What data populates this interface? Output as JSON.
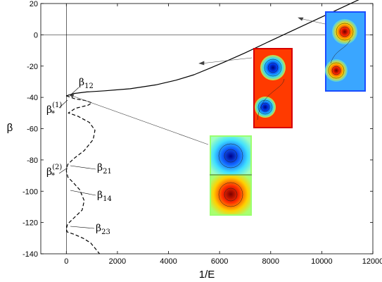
{
  "chart_data": {
    "type": "line",
    "xlabel": "1/E",
    "ylabel": "β",
    "xlim": [
      -1000,
      12000
    ],
    "ylim": [
      -140,
      20
    ],
    "xticks": [
      0,
      2000,
      4000,
      6000,
      8000,
      10000,
      12000
    ],
    "yticks": [
      20,
      0,
      -20,
      -40,
      -60,
      -80,
      -100,
      -120,
      -140
    ],
    "grid": false,
    "series": [
      {
        "style": "solid",
        "x": [
          0,
          300,
          800,
          1500,
          2500,
          3500,
          4300,
          5000,
          5600,
          6200,
          7000,
          8000,
          9000,
          10000,
          11000,
          11500
        ],
        "y": [
          -39,
          -37.5,
          -36.5,
          -35.8,
          -34.5,
          -32,
          -29,
          -25.5,
          -21.5,
          -17.3,
          -11.5,
          -3.8,
          3.8,
          11.4,
          19,
          22.8
        ]
      },
      {
        "style": "dashed",
        "x": [
          0,
          350,
          750,
          1000,
          850,
          350,
          80,
          450,
          900,
          1120,
          1050,
          700,
          300,
          50,
          0,
          60,
          300,
          520,
          700,
          620,
          300,
          50,
          0,
          30,
          300,
          650,
          950,
          1150,
          1300
        ],
        "y": [
          -39,
          -41,
          -42,
          -43.5,
          -45,
          -47,
          -50,
          -52,
          -56,
          -61,
          -67,
          -74,
          -79,
          -83,
          -87,
          -91,
          -95,
          -99,
          -106,
          -112,
          -117,
          -121,
          -124,
          -126,
          -127.5,
          -130,
          -133,
          -137,
          -140
        ]
      }
    ],
    "annotations": [
      {
        "base": "β",
        "sub": "12",
        "x": 0,
        "y": -39
      },
      {
        "base": "β",
        "sup": "(1)",
        "subscript_mark": "*",
        "x": 0,
        "y": -47
      },
      {
        "base": "β",
        "sub": "21",
        "x": 0,
        "y": -85
      },
      {
        "base": "β",
        "sup": "(2)",
        "subscript_mark": "*",
        "x": 0,
        "y": -88
      },
      {
        "base": "β",
        "sub": "14",
        "x": 0,
        "y": -98
      },
      {
        "base": "β",
        "sub": "23",
        "x": 0,
        "y": -123
      }
    ],
    "insets": [
      {
        "kind": "two-peak-elongated",
        "points_to": {
          "x": 9200,
          "y": 10
        }
      },
      {
        "kind": "two-peak-elongated",
        "points_to": {
          "x": 5300,
          "y": -18
        }
      },
      {
        "kind": "two-cell-split",
        "points_to": {
          "x": 0,
          "y": -39
        }
      }
    ]
  }
}
